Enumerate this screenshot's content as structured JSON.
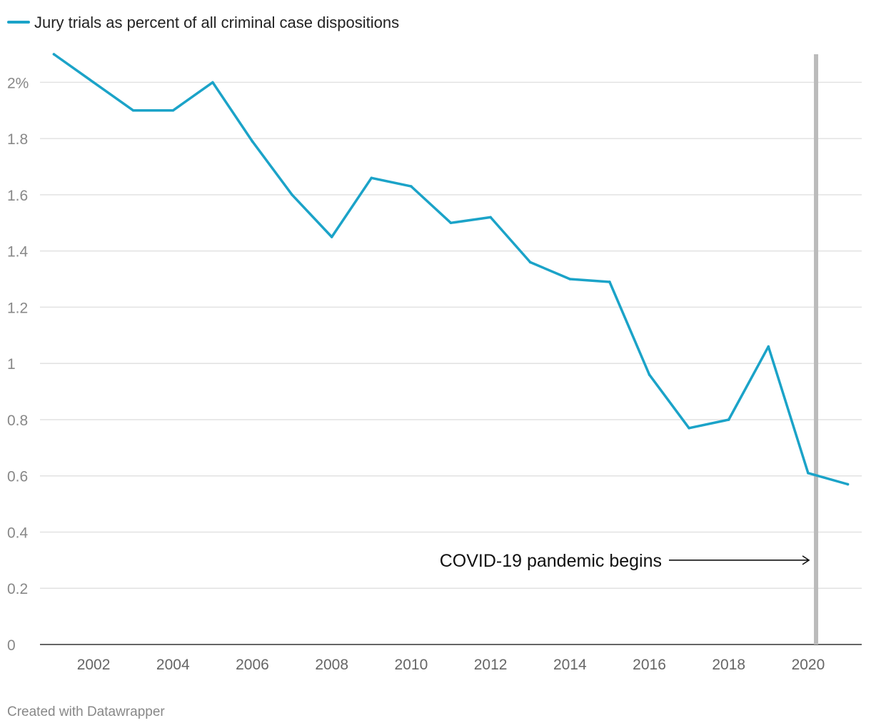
{
  "chart_data": {
    "type": "line",
    "title": "",
    "xlabel": "",
    "ylabel": "",
    "x": [
      2001,
      2002,
      2003,
      2004,
      2005,
      2006,
      2007,
      2008,
      2009,
      2010,
      2011,
      2012,
      2013,
      2014,
      2015,
      2016,
      2017,
      2018,
      2019,
      2020,
      2021
    ],
    "series": [
      {
        "name": "Jury trials as percent of all criminal case dispositions",
        "color": "#1ba3c8",
        "values": [
          2.1,
          2.0,
          1.9,
          1.9,
          2.0,
          1.79,
          1.6,
          1.45,
          1.66,
          1.63,
          1.5,
          1.52,
          1.36,
          1.3,
          1.29,
          0.96,
          0.77,
          0.8,
          1.06,
          0.61,
          0.57
        ]
      }
    ],
    "xlim": [
      2000.65,
      2021.35
    ],
    "ylim": [
      0,
      2.1
    ],
    "y_ticks": [
      {
        "value": 0,
        "label": "0"
      },
      {
        "value": 0.2,
        "label": "0.2"
      },
      {
        "value": 0.4,
        "label": "0.4"
      },
      {
        "value": 0.6,
        "label": "0.6"
      },
      {
        "value": 0.8,
        "label": "0.8"
      },
      {
        "value": 1,
        "label": "1"
      },
      {
        "value": 1.2,
        "label": "1.2"
      },
      {
        "value": 1.4,
        "label": "1.4"
      },
      {
        "value": 1.6,
        "label": "1.6"
      },
      {
        "value": 1.8,
        "label": "1.8"
      },
      {
        "value": 2,
        "label": "2%"
      }
    ],
    "x_ticks": [
      {
        "value": 2002,
        "label": "2002"
      },
      {
        "value": 2004,
        "label": "2004"
      },
      {
        "value": 2006,
        "label": "2006"
      },
      {
        "value": 2008,
        "label": "2008"
      },
      {
        "value": 2010,
        "label": "2010"
      },
      {
        "value": 2012,
        "label": "2012"
      },
      {
        "value": 2014,
        "label": "2014"
      },
      {
        "value": 2016,
        "label": "2016"
      },
      {
        "value": 2018,
        "label": "2018"
      },
      {
        "value": 2020,
        "label": "2020"
      }
    ],
    "grid": true,
    "legend_position": "top-left",
    "annotations": [
      {
        "text": "COVID-19 pandemic begins",
        "x": 2020,
        "y": 0.3,
        "marker_x": 2020.2,
        "marker_color": "#bbbbbb"
      }
    ]
  },
  "credit": "Created with Datawrapper"
}
